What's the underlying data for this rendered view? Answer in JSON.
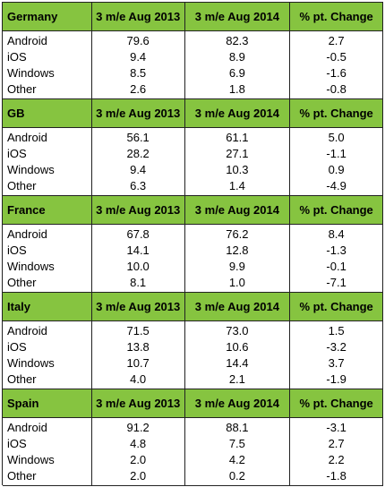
{
  "table": {
    "col_2013": "3 m/e Aug 2013",
    "col_2014": "3 m/e Aug 2014",
    "col_change": "% pt. Change",
    "sections": [
      {
        "country": "Germany",
        "rows": [
          {
            "os": "Android",
            "y2013": "79.6",
            "y2014": "82.3",
            "change": "2.7"
          },
          {
            "os": "iOS",
            "y2013": "9.4",
            "y2014": "8.9",
            "change": "-0.5"
          },
          {
            "os": "Windows",
            "y2013": "8.5",
            "y2014": "6.9",
            "change": "-1.6"
          },
          {
            "os": "Other",
            "y2013": "2.6",
            "y2014": "1.8",
            "change": "-0.8"
          }
        ]
      },
      {
        "country": "GB",
        "rows": [
          {
            "os": "Android",
            "y2013": "56.1",
            "y2014": "61.1",
            "change": "5.0"
          },
          {
            "os": "iOS",
            "y2013": "28.2",
            "y2014": "27.1",
            "change": "-1.1"
          },
          {
            "os": "Windows",
            "y2013": "9.4",
            "y2014": "10.3",
            "change": "0.9"
          },
          {
            "os": "Other",
            "y2013": "6.3",
            "y2014": "1.4",
            "change": "-4.9"
          }
        ]
      },
      {
        "country": "France",
        "rows": [
          {
            "os": "Android",
            "y2013": "67.8",
            "y2014": "76.2",
            "change": "8.4"
          },
          {
            "os": "iOS",
            "y2013": "14.1",
            "y2014": "12.8",
            "change": "-1.3"
          },
          {
            "os": "Windows",
            "y2013": "10.0",
            "y2014": "9.9",
            "change": "-0.1"
          },
          {
            "os": "Other",
            "y2013": "8.1",
            "y2014": "1.0",
            "change": "-7.1"
          }
        ]
      },
      {
        "country": "Italy",
        "rows": [
          {
            "os": "Android",
            "y2013": "71.5",
            "y2014": "73.0",
            "change": "1.5"
          },
          {
            "os": "iOS",
            "y2013": "13.8",
            "y2014": "10.6",
            "change": "-3.2"
          },
          {
            "os": "Windows",
            "y2013": "10.7",
            "y2014": "14.4",
            "change": "3.7"
          },
          {
            "os": "Other",
            "y2013": "4.0",
            "y2014": "2.1",
            "change": "-1.9"
          }
        ]
      },
      {
        "country": "Spain",
        "rows": [
          {
            "os": "Android",
            "y2013": "91.2",
            "y2014": "88.1",
            "change": "-3.1"
          },
          {
            "os": "iOS",
            "y2013": "4.8",
            "y2014": "7.5",
            "change": "2.7"
          },
          {
            "os": "Windows",
            "y2013": "2.0",
            "y2014": "4.2",
            "change": "2.2"
          },
          {
            "os": "Other",
            "y2013": "2.0",
            "y2014": "0.2",
            "change": "-1.8"
          }
        ]
      }
    ]
  },
  "colors": {
    "header_bg": "#86c440",
    "grid": "#222222"
  }
}
